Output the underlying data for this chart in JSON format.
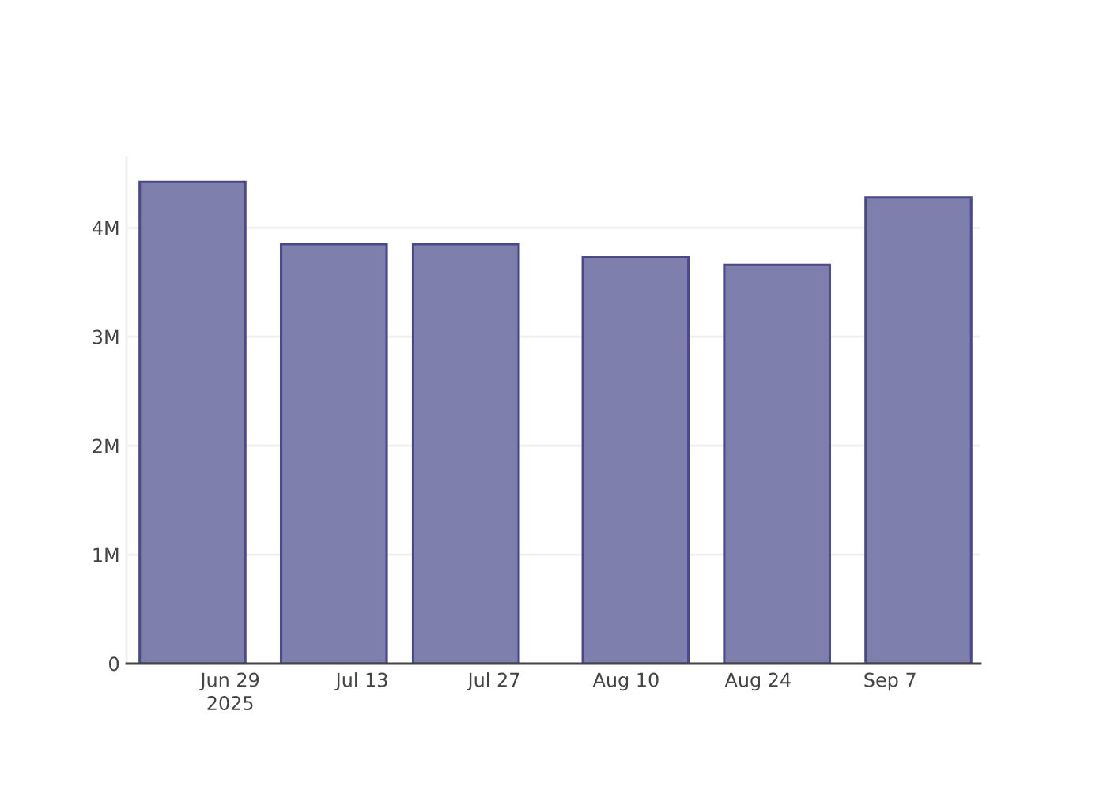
{
  "chart_data": {
    "type": "bar",
    "x": [
      "2025-06-25",
      "2025-07-10",
      "2025-07-24",
      "2025-08-11",
      "2025-08-26",
      "2025-09-10"
    ],
    "values": [
      4420000,
      3850000,
      3850000,
      3730000,
      3660000,
      4280000
    ],
    "color": "#7f7fae",
    "xlim": [
      "2025-06-18",
      "2025-09-16T14:00"
    ],
    "xticks": [
      {
        "value": "2025-06-29",
        "label": "Jun 29\n2025"
      },
      {
        "value": "2025-07-13",
        "label": "Jul 13"
      },
      {
        "value": "2025-07-27",
        "label": "Jul 27"
      },
      {
        "value": "2025-08-10",
        "label": "Aug 10"
      },
      {
        "value": "2025-08-24",
        "label": "Aug 24"
      },
      {
        "value": "2025-09-07",
        "label": "Sep 7"
      }
    ],
    "ylim": [
      0,
      4640000
    ],
    "yticks": [
      0,
      {
        "value": 1000000,
        "label": "1M"
      },
      {
        "value": 2000000,
        "label": "2M"
      },
      {
        "value": 3000000,
        "label": "3M"
      },
      {
        "value": 4000000,
        "label": "4M"
      }
    ],
    "grid": "y",
    "legend": false
  }
}
